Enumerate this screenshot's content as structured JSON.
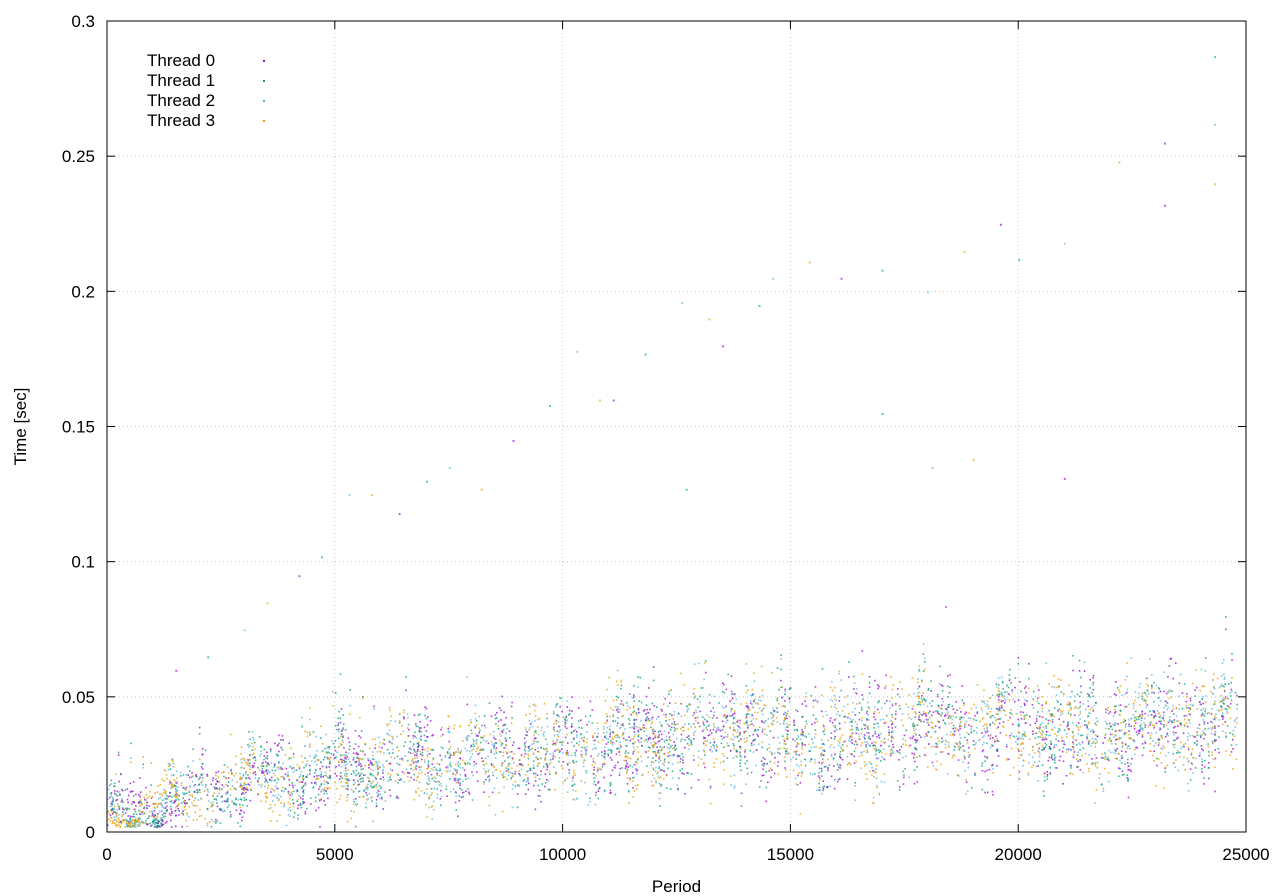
{
  "chart_data": {
    "type": "scatter",
    "title": "",
    "xlabel": "Period",
    "ylabel": "Time [sec]",
    "xlim": [
      0,
      25000
    ],
    "ylim": [
      0,
      0.3
    ],
    "x_ticks": [
      0,
      5000,
      10000,
      15000,
      20000,
      25000
    ],
    "x_tick_labels": [
      "0",
      "5000",
      "10000",
      "15000",
      "20000",
      "25000"
    ],
    "y_ticks": [
      0,
      0.05,
      0.1,
      0.15,
      0.2,
      0.25,
      0.3
    ],
    "y_tick_labels": [
      "0",
      "0.05",
      "0.1",
      "0.15",
      "0.2",
      "0.25",
      "0.3"
    ],
    "grid": true,
    "legend_position": "top-left",
    "series": [
      {
        "name": "Thread 0",
        "color": "#9400d3"
      },
      {
        "name": "Thread 1",
        "color": "#009e73"
      },
      {
        "name": "Thread 2",
        "color": "#56b4e9"
      },
      {
        "name": "Thread 3",
        "color": "#e69f00"
      }
    ],
    "trend": [
      {
        "x": 0,
        "y": 0.005
      },
      {
        "x": 1000,
        "y": 0.009
      },
      {
        "x": 2000,
        "y": 0.015
      },
      {
        "x": 3000,
        "y": 0.019
      },
      {
        "x": 4000,
        "y": 0.022
      },
      {
        "x": 5000,
        "y": 0.023
      },
      {
        "x": 6000,
        "y": 0.025
      },
      {
        "x": 7000,
        "y": 0.026
      },
      {
        "x": 8000,
        "y": 0.028
      },
      {
        "x": 9000,
        "y": 0.029
      },
      {
        "x": 10000,
        "y": 0.031
      },
      {
        "x": 11000,
        "y": 0.033
      },
      {
        "x": 12000,
        "y": 0.035
      },
      {
        "x": 13000,
        "y": 0.036
      },
      {
        "x": 14000,
        "y": 0.037
      },
      {
        "x": 15000,
        "y": 0.036
      },
      {
        "x": 16000,
        "y": 0.034
      },
      {
        "x": 17000,
        "y": 0.038
      },
      {
        "x": 18000,
        "y": 0.039
      },
      {
        "x": 19000,
        "y": 0.038
      },
      {
        "x": 20000,
        "y": 0.039
      },
      {
        "x": 21000,
        "y": 0.037
      },
      {
        "x": 22000,
        "y": 0.038
      },
      {
        "x": 23000,
        "y": 0.04
      },
      {
        "x": 24000,
        "y": 0.041
      },
      {
        "x": 24800,
        "y": 0.04
      }
    ],
    "outliers": [
      {
        "x": 1500,
        "y": 0.06
      },
      {
        "x": 2200,
        "y": 0.065
      },
      {
        "x": 3000,
        "y": 0.075
      },
      {
        "x": 3500,
        "y": 0.085
      },
      {
        "x": 4200,
        "y": 0.095
      },
      {
        "x": 4700,
        "y": 0.102
      },
      {
        "x": 5300,
        "y": 0.125
      },
      {
        "x": 5800,
        "y": 0.125
      },
      {
        "x": 6400,
        "y": 0.118
      },
      {
        "x": 7000,
        "y": 0.13
      },
      {
        "x": 7500,
        "y": 0.135
      },
      {
        "x": 8200,
        "y": 0.127
      },
      {
        "x": 8900,
        "y": 0.145
      },
      {
        "x": 9700,
        "y": 0.158
      },
      {
        "x": 10300,
        "y": 0.178
      },
      {
        "x": 10800,
        "y": 0.16
      },
      {
        "x": 11100,
        "y": 0.16
      },
      {
        "x": 11800,
        "y": 0.177
      },
      {
        "x": 12600,
        "y": 0.196
      },
      {
        "x": 13200,
        "y": 0.19
      },
      {
        "x": 13500,
        "y": 0.18
      },
      {
        "x": 14300,
        "y": 0.195
      },
      {
        "x": 14600,
        "y": 0.205
      },
      {
        "x": 15400,
        "y": 0.211
      },
      {
        "x": 16100,
        "y": 0.205
      },
      {
        "x": 17000,
        "y": 0.208
      },
      {
        "x": 18000,
        "y": 0.2
      },
      {
        "x": 18800,
        "y": 0.215
      },
      {
        "x": 19600,
        "y": 0.225
      },
      {
        "x": 20000,
        "y": 0.212
      },
      {
        "x": 21000,
        "y": 0.218
      },
      {
        "x": 22200,
        "y": 0.248
      },
      {
        "x": 23200,
        "y": 0.255
      },
      {
        "x": 24300,
        "y": 0.287
      },
      {
        "x": 24300,
        "y": 0.262
      },
      {
        "x": 24300,
        "y": 0.24
      },
      {
        "x": 23200,
        "y": 0.232
      },
      {
        "x": 12700,
        "y": 0.127
      },
      {
        "x": 18100,
        "y": 0.135
      },
      {
        "x": 19000,
        "y": 0.138
      },
      {
        "x": 21000,
        "y": 0.131
      },
      {
        "x": 17000,
        "y": 0.155
      }
    ]
  }
}
